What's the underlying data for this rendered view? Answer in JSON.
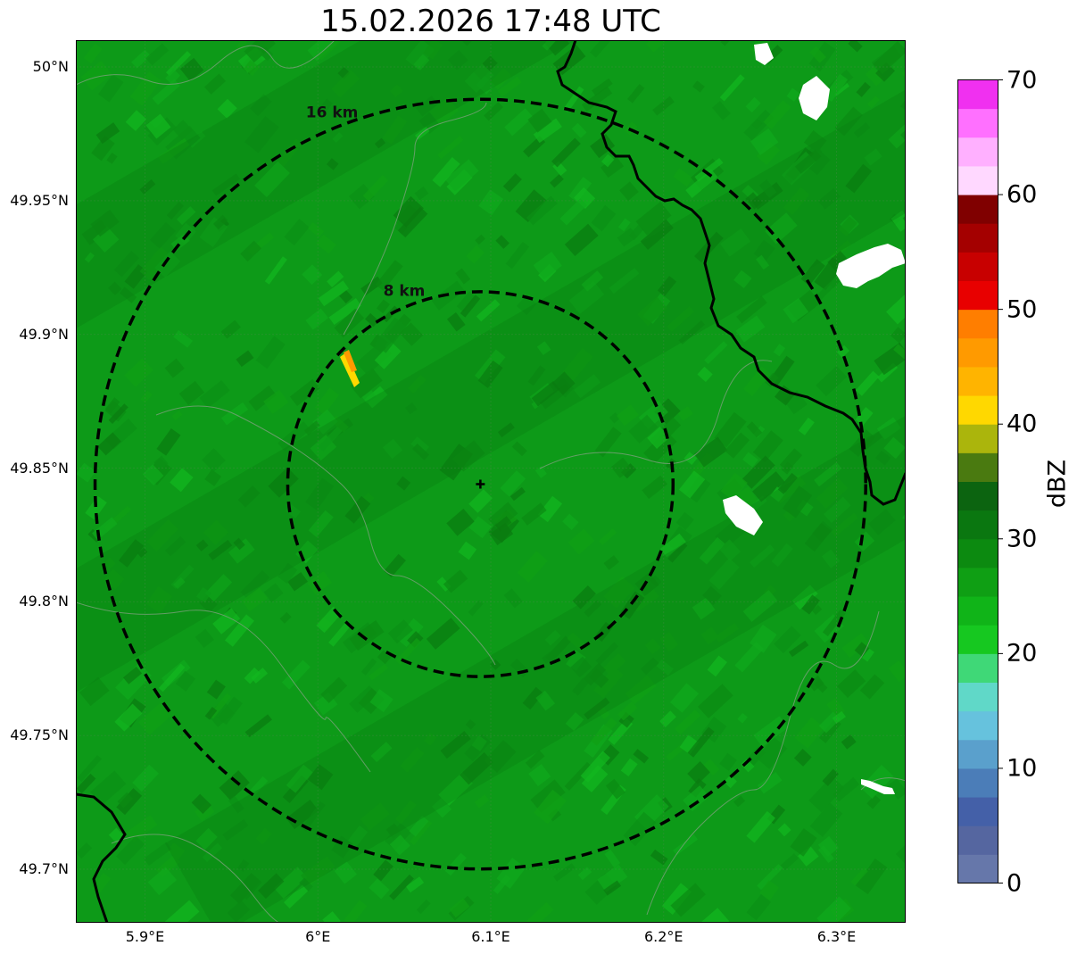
{
  "title": "15.02.2026 17:48 UTC",
  "map": {
    "extent": {
      "lon": [
        5.86,
        6.34
      ],
      "lat": [
        49.68,
        50.01
      ]
    },
    "radar_site": {
      "lon": 6.094,
      "lat": 49.844
    },
    "range_rings": [
      {
        "label": "8 km",
        "radius_km": 8
      },
      {
        "label": "16 km",
        "radius_km": 16
      }
    ],
    "lat_ticks": [
      {
        "value": 50.0,
        "label": "50°N"
      },
      {
        "value": 49.95,
        "label": "49.95°N"
      },
      {
        "value": 49.9,
        "label": "49.9°N"
      },
      {
        "value": 49.85,
        "label": "49.85°N"
      },
      {
        "value": 49.8,
        "label": "49.8°N"
      },
      {
        "value": 49.75,
        "label": "49.75°N"
      },
      {
        "value": 49.7,
        "label": "49.7°N"
      }
    ],
    "lon_ticks": [
      {
        "value": 5.9,
        "label": "5.9°E"
      },
      {
        "value": 6.0,
        "label": "6°E"
      },
      {
        "value": 6.1,
        "label": "6.1°E"
      },
      {
        "value": 6.2,
        "label": "6.2°E"
      },
      {
        "value": 6.3,
        "label": "6.3°E"
      }
    ]
  },
  "colorbar": {
    "label": "dBZ",
    "min": 0,
    "max": 70,
    "ticks": [
      "0",
      "10",
      "20",
      "30",
      "40",
      "50",
      "60",
      "70"
    ],
    "colors": [
      "#6677aa",
      "#5566a0",
      "#4460a8",
      "#4b7db8",
      "#5aa0cc",
      "#66c2dd",
      "#60d8c8",
      "#3fd877",
      "#16c820",
      "#10b418",
      "#0f9f14",
      "#0c8a10",
      "#0a7710",
      "#0c6410",
      "#4a7a10",
      "#abb50c",
      "#ffd800",
      "#ffb400",
      "#ff9a00",
      "#ff7e00",
      "#e80000",
      "#c80000",
      "#a40000",
      "#800000",
      "#ffd8ff",
      "#ffb0ff",
      "#ff70ff",
      "#f030f0"
    ]
  }
}
